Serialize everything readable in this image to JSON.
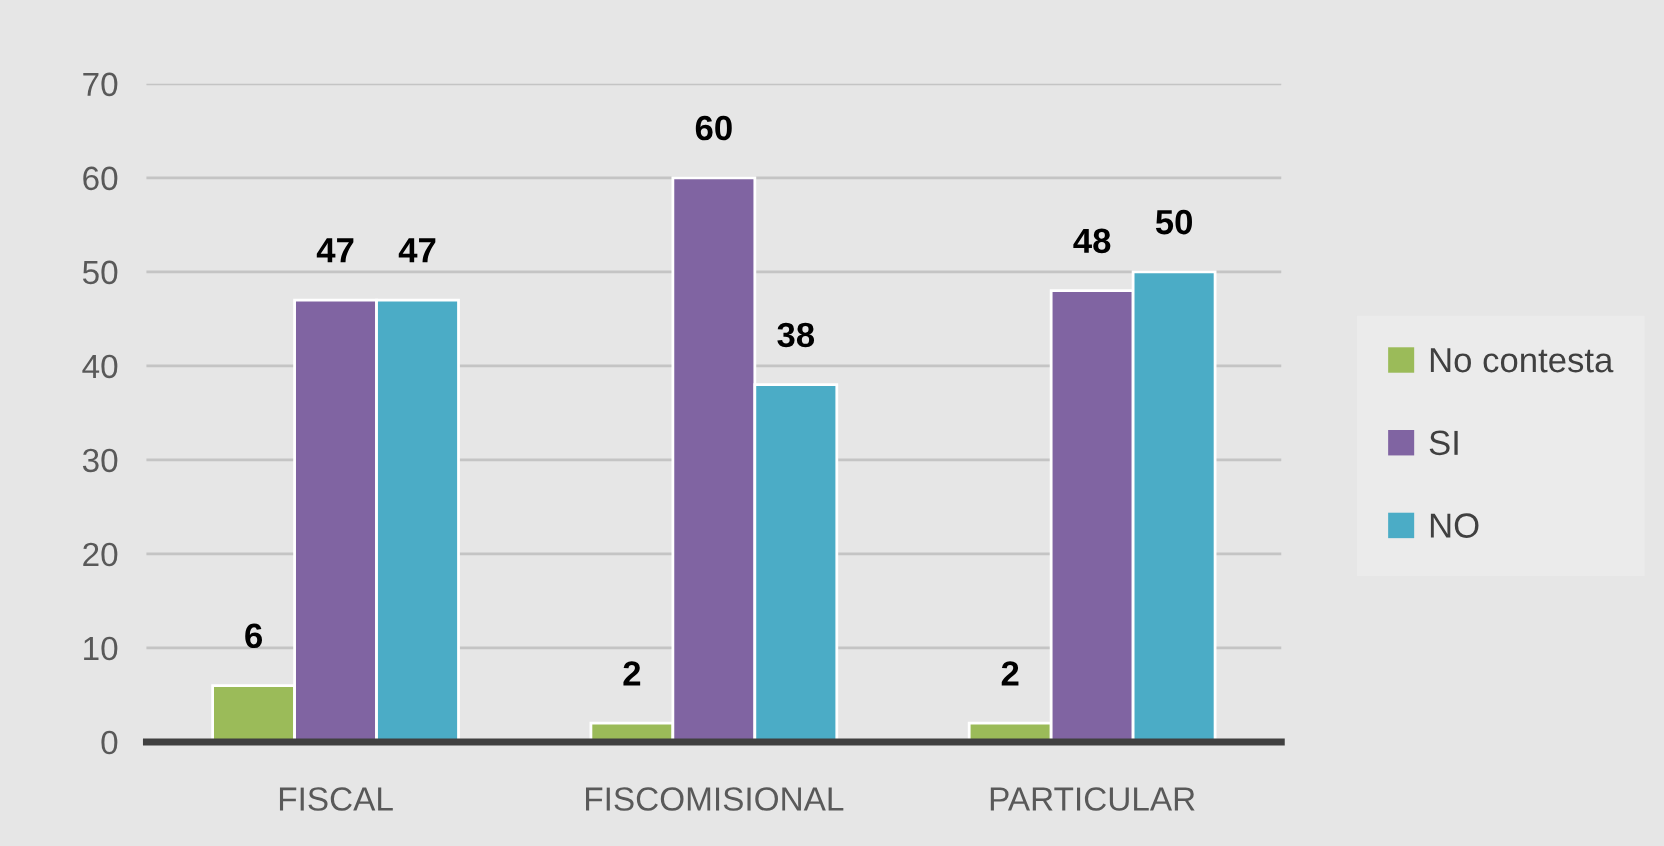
{
  "chart_data": {
    "type": "bar",
    "categories": [
      "FISCAL",
      "FISCOMISIONAL",
      "PARTICULAR"
    ],
    "series": [
      {
        "name": "No contesta",
        "color": "#9bbb59",
        "values": [
          6,
          2,
          2
        ]
      },
      {
        "name": "SI",
        "color": "#8064a2",
        "values": [
          47,
          60,
          48
        ]
      },
      {
        "name": "NO",
        "color": "#4bacc6",
        "values": [
          47,
          38,
          50
        ]
      }
    ],
    "ylim": [
      0,
      70
    ],
    "yticks": [
      0,
      10,
      20,
      30,
      40,
      50,
      60,
      70
    ],
    "grid": "y",
    "legend": "right",
    "data_labels": true
  }
}
